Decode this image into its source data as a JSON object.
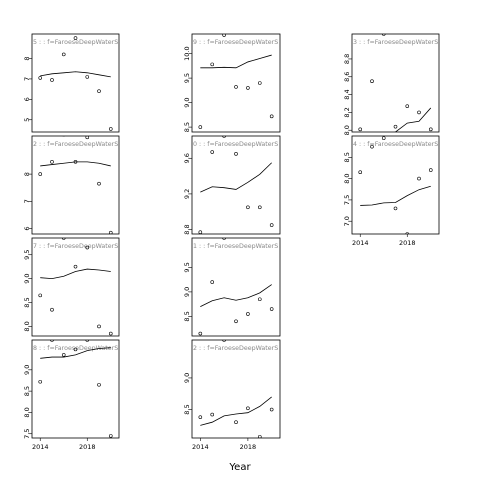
{
  "figure": {
    "xlabel": "Year",
    "x_ticks": [
      "2014",
      "2018"
    ]
  },
  "chart_data": [
    {
      "type": "scatter",
      "strip": "5 : : f=FaroeseDeepWaterS",
      "ylim": [
        4.4,
        9.2
      ],
      "y_ticks": [
        5,
        6,
        7,
        8,
        9
      ],
      "points": [
        [
          2014,
          7.05
        ],
        [
          2015,
          6.95
        ],
        [
          2016,
          8.2
        ],
        [
          2017,
          9.0
        ],
        [
          2018,
          7.1
        ],
        [
          2019,
          6.4
        ],
        [
          2020,
          4.55
        ]
      ],
      "fit": [
        [
          2014,
          7.15
        ],
        [
          2015,
          7.25
        ],
        [
          2016,
          7.3
        ],
        [
          2017,
          7.35
        ],
        [
          2018,
          7.3
        ],
        [
          2019,
          7.2
        ],
        [
          2020,
          7.1
        ]
      ]
    },
    {
      "type": "scatter",
      "strip": "9 : : f=FaroeseDeepWaterS",
      "ylim": [
        8.4,
        10.4
      ],
      "y_ticks": [
        8.5,
        9.0,
        9.5,
        10.0
      ],
      "points": [
        [
          2014,
          8.5
        ],
        [
          2015,
          9.78
        ],
        [
          2016,
          10.38
        ],
        [
          2017,
          9.32
        ],
        [
          2018,
          9.3
        ],
        [
          2019,
          9.4
        ],
        [
          2020,
          8.72
        ]
      ],
      "fit": [
        [
          2014,
          9.71
        ],
        [
          2015,
          9.71
        ],
        [
          2016,
          9.72
        ],
        [
          2017,
          9.71
        ],
        [
          2018,
          9.83
        ],
        [
          2019,
          9.9
        ],
        [
          2020,
          9.97
        ]
      ]
    },
    {
      "type": "scatter",
      "strip": "3 : : f=FaroeseDeepWaterS",
      "ylim": [
        7.98,
        9.08
      ],
      "y_ticks": [
        8.0,
        8.2,
        8.4,
        8.6,
        8.8,
        9.0
      ],
      "points": [
        [
          2014,
          8.01
        ],
        [
          2015,
          8.55
        ],
        [
          2016,
          9.08
        ],
        [
          2017,
          8.04
        ],
        [
          2018,
          8.27
        ],
        [
          2019,
          8.2
        ],
        [
          2020,
          8.01
        ]
      ],
      "fit": [
        [
          2016,
          7.92
        ],
        [
          2017,
          7.98
        ],
        [
          2018,
          8.08
        ],
        [
          2019,
          8.1
        ],
        [
          2020,
          8.25
        ]
      ]
    },
    {
      "type": "scatter",
      "strip": "2 : : f=FaroeseDeepWaterS",
      "ylim": [
        5.8,
        9.4
      ],
      "y_ticks": [
        6.0,
        7.0,
        8.0,
        9.0
      ],
      "points": [
        [
          2014,
          8.0
        ],
        [
          2015,
          8.45
        ],
        [
          2016,
          9.45
        ],
        [
          2017,
          8.45
        ],
        [
          2018,
          9.35
        ],
        [
          2019,
          7.65
        ],
        [
          2020,
          5.85
        ]
      ],
      "fit": [
        [
          2014,
          8.3
        ],
        [
          2015,
          8.35
        ],
        [
          2016,
          8.4
        ],
        [
          2017,
          8.45
        ],
        [
          2018,
          8.45
        ],
        [
          2019,
          8.4
        ],
        [
          2020,
          8.3
        ]
      ]
    },
    {
      "type": "scatter",
      "strip": "0 : : f=FaroeseDeepWaterS",
      "ylim": [
        8.75,
        9.85
      ],
      "y_ticks": [
        8.8,
        9.2,
        9.6
      ],
      "points": [
        [
          2014,
          8.77
        ],
        [
          2015,
          9.67
        ],
        [
          2016,
          9.85
        ],
        [
          2017,
          9.65
        ],
        [
          2018,
          9.05
        ],
        [
          2019,
          9.05
        ],
        [
          2020,
          8.85
        ]
      ],
      "fit": [
        [
          2014,
          9.22
        ],
        [
          2015,
          9.28
        ],
        [
          2016,
          9.27
        ],
        [
          2017,
          9.25
        ],
        [
          2018,
          9.33
        ],
        [
          2019,
          9.42
        ],
        [
          2020,
          9.55
        ]
      ]
    },
    {
      "type": "scatter",
      "strip": "4 : : f=FaroeseDeepWaterS",
      "ylim": [
        6.7,
        9.0
      ],
      "y_ticks": [
        7.0,
        7.5,
        8.0,
        8.5
      ],
      "points": [
        [
          2014,
          8.15
        ],
        [
          2015,
          8.75
        ],
        [
          2016,
          8.95
        ],
        [
          2017,
          7.3
        ],
        [
          2018,
          6.7
        ],
        [
          2019,
          8.0
        ],
        [
          2020,
          8.2
        ]
      ],
      "fit": [
        [
          2014,
          7.37
        ],
        [
          2015,
          7.38
        ],
        [
          2016,
          7.43
        ],
        [
          2017,
          7.44
        ],
        [
          2018,
          7.6
        ],
        [
          2019,
          7.74
        ],
        [
          2020,
          7.82
        ]
      ]
    },
    {
      "type": "scatter",
      "strip": "7 : : f=FaroeseDeepWaterS",
      "ylim": [
        7.8,
        9.85
      ],
      "y_ticks": [
        8.0,
        8.5,
        9.0,
        9.5
      ],
      "points": [
        [
          2014,
          8.65
        ],
        [
          2015,
          8.35
        ],
        [
          2016,
          9.85
        ],
        [
          2017,
          9.25
        ],
        [
          2018,
          9.65
        ],
        [
          2019,
          8.0
        ],
        [
          2020,
          7.85
        ]
      ],
      "fit": [
        [
          2014,
          9.02
        ],
        [
          2015,
          9.0
        ],
        [
          2016,
          9.05
        ],
        [
          2017,
          9.15
        ],
        [
          2018,
          9.2
        ],
        [
          2019,
          9.18
        ],
        [
          2020,
          9.15
        ]
      ]
    },
    {
      "type": "scatter",
      "strip": "1 : : f=FaroeseDeepWaterS",
      "ylim": [
        8.1,
        10.1
      ],
      "y_ticks": [
        8.5,
        9.0,
        9.5,
        10.0
      ],
      "points": [
        [
          2014,
          8.15
        ],
        [
          2015,
          9.2
        ],
        [
          2016,
          10.1
        ],
        [
          2017,
          8.4
        ],
        [
          2018,
          8.55
        ],
        [
          2019,
          8.85
        ],
        [
          2020,
          8.65
        ]
      ],
      "fit": [
        [
          2014,
          8.7
        ],
        [
          2015,
          8.82
        ],
        [
          2016,
          8.88
        ],
        [
          2017,
          8.83
        ],
        [
          2018,
          8.88
        ],
        [
          2019,
          8.98
        ],
        [
          2020,
          9.15
        ]
      ]
    },
    {
      "type": "scatter",
      "strip": "8 : : f=FaroeseDeepWaterS",
      "ylim": [
        7.4,
        9.7
      ],
      "y_ticks": [
        7.5,
        8.0,
        8.5,
        9.0,
        9.5
      ],
      "points": [
        [
          2014,
          8.72
        ],
        [
          2015,
          9.7
        ],
        [
          2016,
          9.35
        ],
        [
          2017,
          9.48
        ],
        [
          2018,
          9.7
        ],
        [
          2019,
          8.65
        ],
        [
          2020,
          7.45
        ]
      ],
      "fit": [
        [
          2014,
          9.27
        ],
        [
          2015,
          9.3
        ],
        [
          2016,
          9.3
        ],
        [
          2017,
          9.35
        ],
        [
          2018,
          9.45
        ],
        [
          2019,
          9.5
        ],
        [
          2020,
          9.52
        ]
      ]
    },
    {
      "type": "scatter",
      "strip": "2 : : f=FaroeseDeepWaterS",
      "ylim": [
        8.05,
        9.6
      ],
      "y_ticks": [
        8.5,
        9.0,
        9.5
      ],
      "points": [
        [
          2014,
          8.38
        ],
        [
          2015,
          8.42
        ],
        [
          2016,
          9.6
        ],
        [
          2017,
          8.3
        ],
        [
          2018,
          8.52
        ],
        [
          2019,
          8.07
        ],
        [
          2020,
          8.5
        ]
      ],
      "fit": [
        [
          2014,
          8.25
        ],
        [
          2015,
          8.3
        ],
        [
          2016,
          8.4
        ],
        [
          2017,
          8.43
        ],
        [
          2018,
          8.45
        ],
        [
          2019,
          8.55
        ],
        [
          2020,
          8.7
        ]
      ]
    }
  ]
}
